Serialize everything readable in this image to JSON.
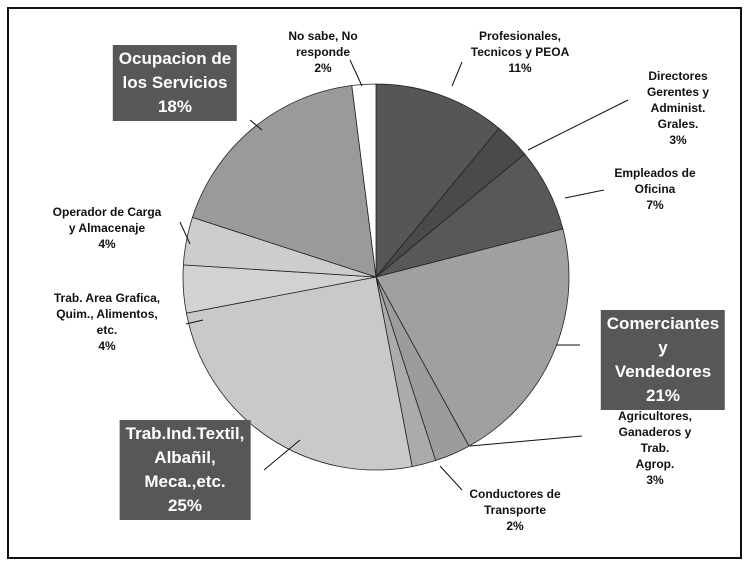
{
  "chart_data": {
    "type": "pie",
    "categories": [
      "Profesionales,\nTecnicos y PEOA",
      "Directores\nGerentes y\nAdminist. Grales.",
      "Empleados de\nOficina",
      "Comerciantes y\nVendedores",
      "Agricultores,\nGanaderos y Trab.\nAgrop.",
      "Conductores de\nTransporte",
      "Trab.Ind.Textil,\nAlbañil,\nMeca.,etc.",
      "Trab. Area Grafica,\nQuim., Alimentos,\netc.",
      "Operador de Carga\ny Almacenaje",
      "Ocupacion de\nlos Servicios",
      "No sabe, No\nresponde"
    ],
    "values": [
      11,
      3,
      7,
      21,
      3,
      2,
      25,
      4,
      4,
      18,
      2
    ],
    "value_labels": [
      "11%",
      "3%",
      "7%",
      "21%",
      "3%",
      "2%",
      "25%",
      "4%",
      "4%",
      "18%",
      "2%"
    ],
    "colors": [
      "#565656",
      "#4a4a4a",
      "#585858",
      "#a0a0a0",
      "#9c9c9c",
      "#ababab",
      "#c9c9c9",
      "#d2d2d2",
      "#cdcdcd",
      "#9a9a9a",
      "#ffffff"
    ]
  }
}
